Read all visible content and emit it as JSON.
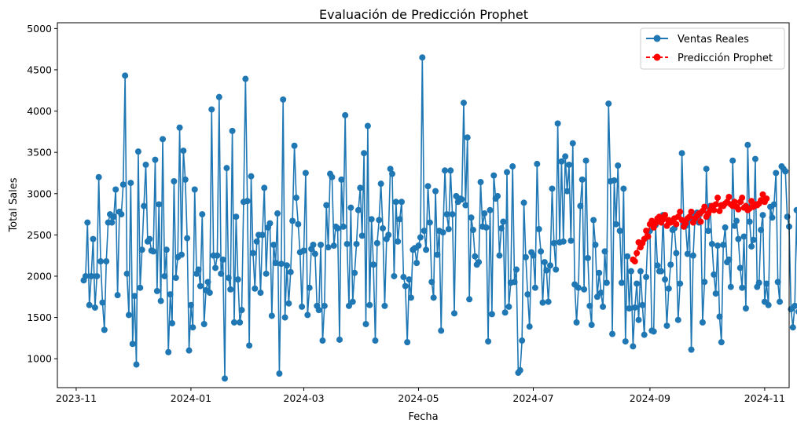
{
  "chart_data": {
    "type": "line",
    "title": "Evaluación de Predicción Prophet",
    "xlabel": "Fecha",
    "ylabel": "Total Sales",
    "xlim": [
      "2023-10-22",
      "2024-11-14"
    ],
    "ylim": [
      650,
      5070
    ],
    "x_ticks": [
      "2023-11-01",
      "2024-01-01",
      "2024-03-01",
      "2024-05-01",
      "2024-07-01",
      "2024-09-01",
      "2024-11-01"
    ],
    "x_tick_labels": [
      "2023-11",
      "2024-01",
      "2024-03",
      "2024-05",
      "2024-07",
      "2024-09",
      "2024-11"
    ],
    "y_ticks": [
      1000,
      1500,
      2000,
      2500,
      3000,
      3500,
      4000,
      4500,
      5000
    ],
    "y_tick_labels": [
      "1000",
      "1500",
      "2000",
      "2500",
      "3000",
      "3500",
      "4000",
      "4500",
      "5000"
    ],
    "grid": false,
    "legend_position": "top-right",
    "series": [
      {
        "name": "Ventas Reales",
        "color": "#1f77b4",
        "line_style": "solid",
        "marker": "circle",
        "x_start": "2023-11-05",
        "values": [
          1950,
          2000,
          2650,
          1650,
          2000,
          2450,
          1620,
          2000,
          3200,
          2180,
          1680,
          1350,
          2180,
          2650,
          2750,
          2650,
          2720,
          3050,
          1770,
          2780,
          2750,
          3110,
          4430,
          2030,
          1530,
          3130,
          1180,
          1760,
          930,
          3510,
          1860,
          2320,
          2850,
          3350,
          2420,
          2450,
          2310,
          2300,
          3410,
          1820,
          2870,
          1700,
          3660,
          2000,
          2320,
          1080,
          1780,
          1430,
          3150,
          1980,
          2230,
          3800,
          2260,
          3520,
          3170,
          2460,
          1100,
          1650,
          1380,
          3050,
          2030,
          2080,
          1880,
          2750,
          1420,
          1830,
          1930,
          1800,
          4020,
          2250,
          2100,
          2250,
          4170,
          2030,
          2200,
          760,
          3310,
          1980,
          1840,
          3760,
          1440,
          2720,
          1960,
          1440,
          1590,
          2900,
          4390,
          2910,
          1160,
          3210,
          2280,
          1850,
          2420,
          2500,
          1800,
          2500,
          3070,
          2030,
          2590,
          2640,
          1520,
          2380,
          2160,
          2760,
          820,
          2150,
          4140,
          1500,
          2130,
          1670,
          2050,
          2670,
          3580,
          2950,
          2630,
          2290,
          1630,
          2310,
          3250,
          1530,
          1860,
          2330,
          2380,
          2270,
          1640,
          1590,
          2380,
          1220,
          1640,
          2860,
          2350,
          3240,
          3200,
          2370,
          2600,
          2580,
          1230,
          3170,
          2600,
          3950,
          2390,
          1640,
          2830,
          1690,
          2040,
          2390,
          2800,
          3070,
          2490,
          3490,
          1420,
          3820,
          1650,
          2690,
          2140,
          1220,
          2400,
          2680,
          3120,
          2580,
          1640,
          2450,
          2500,
          3300,
          3240,
          2000,
          2900,
          2420,
          2690,
          2900,
          1990,
          1880,
          1200,
          1960,
          1740,
          2320,
          2340,
          2160,
          2370,
          2470,
          4650,
          2550,
          2320,
          3090,
          2650,
          1930,
          1740,
          3030,
          2260,
          2550,
          1340,
          2530,
          3280,
          2750,
          2570,
          3280,
          2750,
          1550,
          2970,
          2900,
          2940,
          2930,
          4100,
          2860,
          3680,
          1720,
          2710,
          2560,
          2240,
          2140,
          2170,
          3140,
          2600,
          2760,
          2590,
          1210,
          2800,
          1540,
          3220,
          2940,
          2970,
          2250,
          2580,
          2660,
          1560,
          3260,
          1630,
          1920,
          3330,
          1930,
          2080,
          830,
          860,
          1220,
          2890,
          2230,
          1780,
          1390,
          2290,
          2250,
          1860,
          3360,
          2570,
          2300,
          1680,
          2170,
          2070,
          1690,
          2130,
          3060,
          2400,
          2080,
          3850,
          2410,
          3390,
          2420,
          3450,
          3030,
          3350,
          2430,
          3610,
          1900,
          1440,
          1860,
          2850,
          3170,
          1840,
          3400,
          2220,
          1640,
          1410,
          2680,
          2380,
          1750,
          2040,
          1800,
          1630,
          2300,
          1920,
          4090,
          3150,
          1300,
          3160,
          2630,
          3340,
          2550,
          1920,
          3060,
          1210,
          2240,
          1610,
          2060,
          1150,
          1620,
          1910,
          1470,
          2060,
          1650,
          1290,
          1990,
          2540,
          2550,
          1340,
          1330,
          2620,
          2130,
          2060,
          2060,
          2740,
          1960,
          1400,
          1850,
          2140,
          2560,
          2580,
          2280,
          1470,
          1910,
          3490,
          2650,
          2610,
          2270,
          2690,
          1110,
          2250,
          2750,
          2770,
          2650,
          2770,
          1440,
          1930,
          3300,
          2550,
          2850,
          2390,
          2020,
          1790,
          2370,
          1510,
          1200,
          2380,
          2590,
          2170,
          2200,
          1870,
          3400,
          2610,
          2670,
          2450,
          2100,
          1860,
          2480,
          1610,
          3590,
          2660,
          2360,
          2440,
          3420,
          1870,
          1920,
          2560,
          2740,
          1690,
          1910,
          1650,
          2840,
          2710,
          2870,
          3250,
          1930,
          1690,
          3330,
          3300,
          3270,
          2720,
          2600,
          1600,
          1380,
          1640,
          2800,
          1570,
          1650,
          1370,
          2700,
          2640,
          1940,
          2850,
          1560,
          1480,
          1200,
          2220,
          2740,
          2200,
          2180
        ]
      },
      {
        "name": "Predicción Prophet",
        "color": "#ff0000",
        "line_style": "dashed",
        "marker": "circle",
        "x_start": "2024-08-23",
        "values": [
          2200,
          2180,
          2280,
          2410,
          2350,
          2400,
          2450,
          2550,
          2480,
          2630,
          2670,
          2590,
          2640,
          2700,
          2720,
          2650,
          2690,
          2740,
          2610,
          2680,
          2650,
          2660,
          2700,
          2630,
          2720,
          2780,
          2680,
          2600,
          2640,
          2700,
          2720,
          2780,
          2650,
          2700,
          2730,
          2760,
          2660,
          2790,
          2840,
          2720,
          2760,
          2800,
          2850,
          2800,
          2870,
          2950,
          2790,
          2860,
          2850,
          2880,
          2900,
          2960,
          2870,
          2850,
          2900,
          2840,
          2810,
          2900,
          2950,
          2830,
          2850,
          2800,
          2820,
          2910,
          2840,
          2870,
          2860,
          2880,
          2920,
          2990,
          2900,
          2940
        ]
      }
    ]
  }
}
